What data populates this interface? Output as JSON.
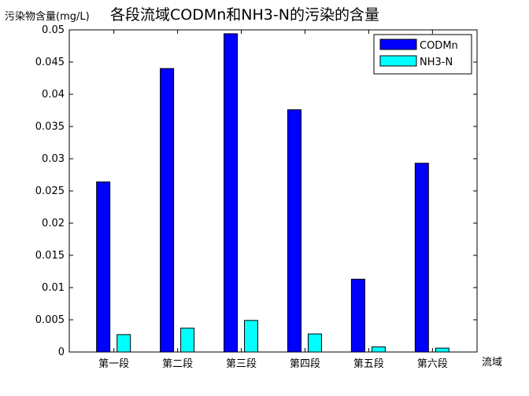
{
  "chart_data": {
    "type": "bar",
    "title": "各段流域CODMn和NH3-N的污染的含量",
    "ylabel": "污染物含量(mg/L)",
    "xlabel": "流域",
    "categories": [
      "第一段",
      "第二段",
      "第三段",
      "第四段",
      "第五段",
      "第六段"
    ],
    "series": [
      {
        "name": "CODMn",
        "color": "#0000ff",
        "values": [
          0.0264,
          0.044,
          0.0494,
          0.0376,
          0.0113,
          0.0293
        ]
      },
      {
        "name": "NH3-N",
        "color": "#00ffff",
        "values": [
          0.0027,
          0.0037,
          0.0049,
          0.0028,
          0.0008,
          0.0006
        ]
      }
    ],
    "ylim": [
      0,
      0.05
    ],
    "yticks": [
      "0",
      "0.005",
      "0.01",
      "0.015",
      "0.02",
      "0.025",
      "0.03",
      "0.035",
      "0.04",
      "0.045",
      "0.05"
    ],
    "grid": false,
    "legend_position": "top-right"
  }
}
